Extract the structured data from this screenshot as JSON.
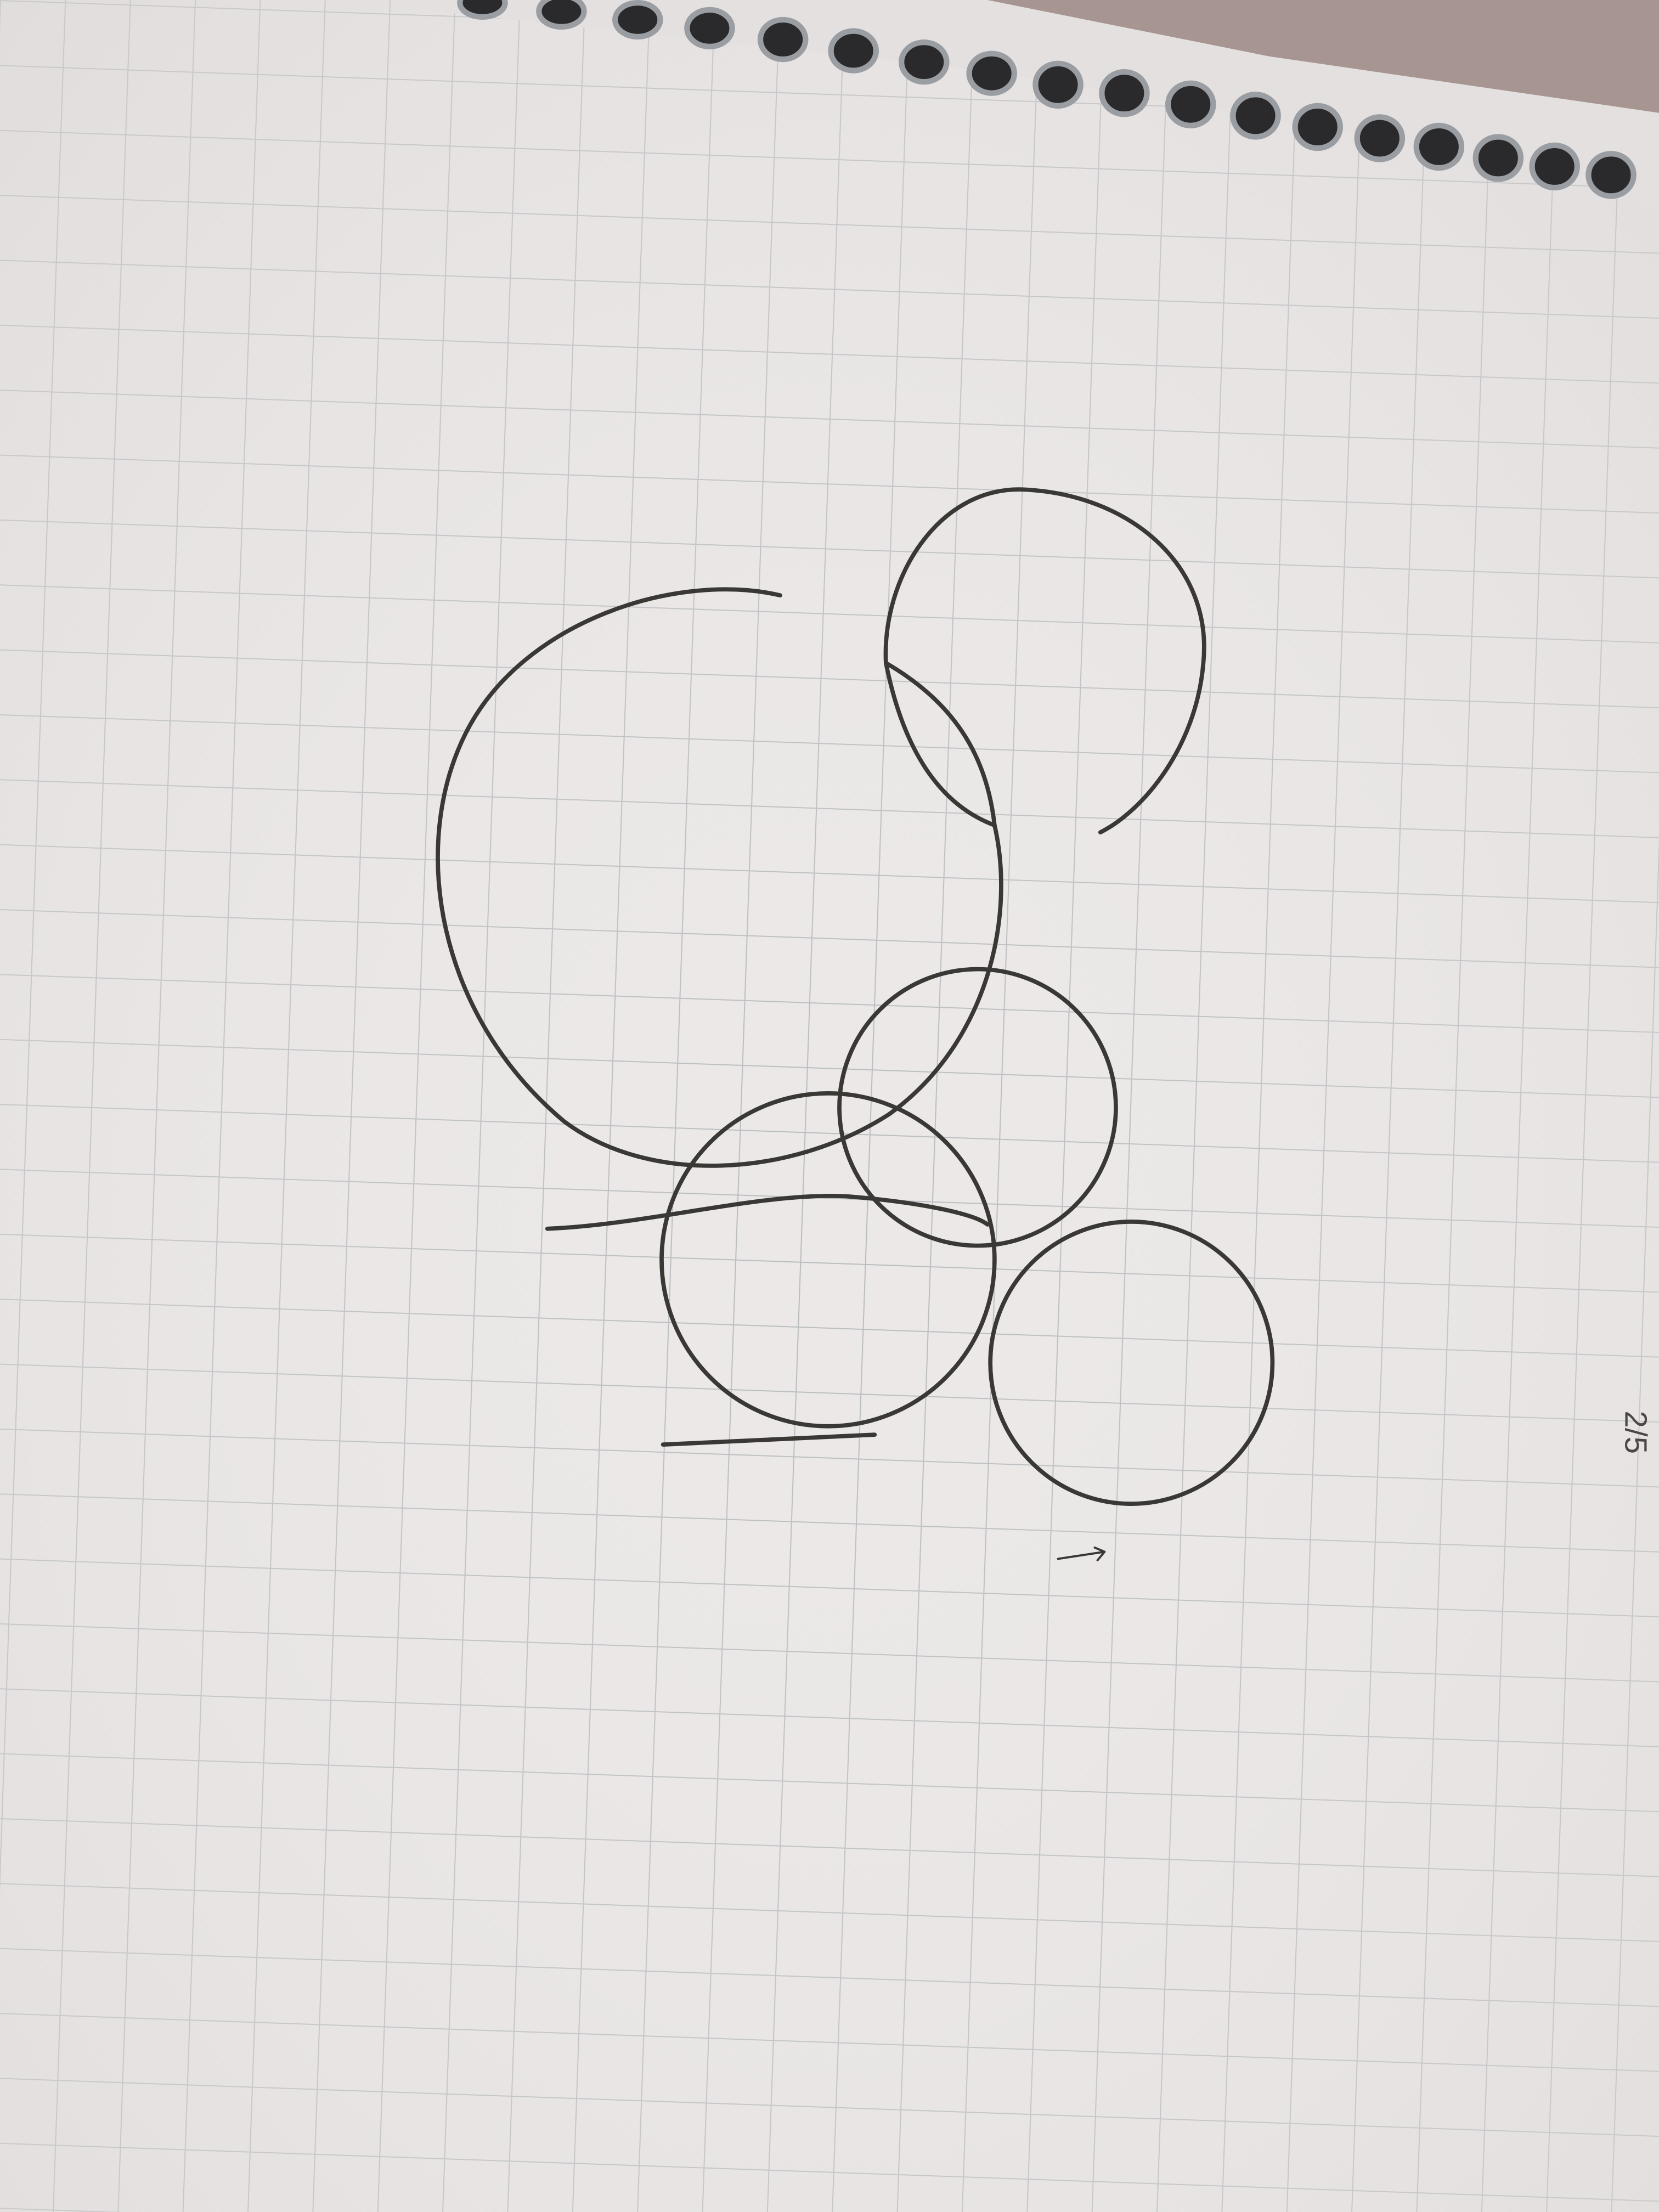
{
  "annotation": "2/5"
}
